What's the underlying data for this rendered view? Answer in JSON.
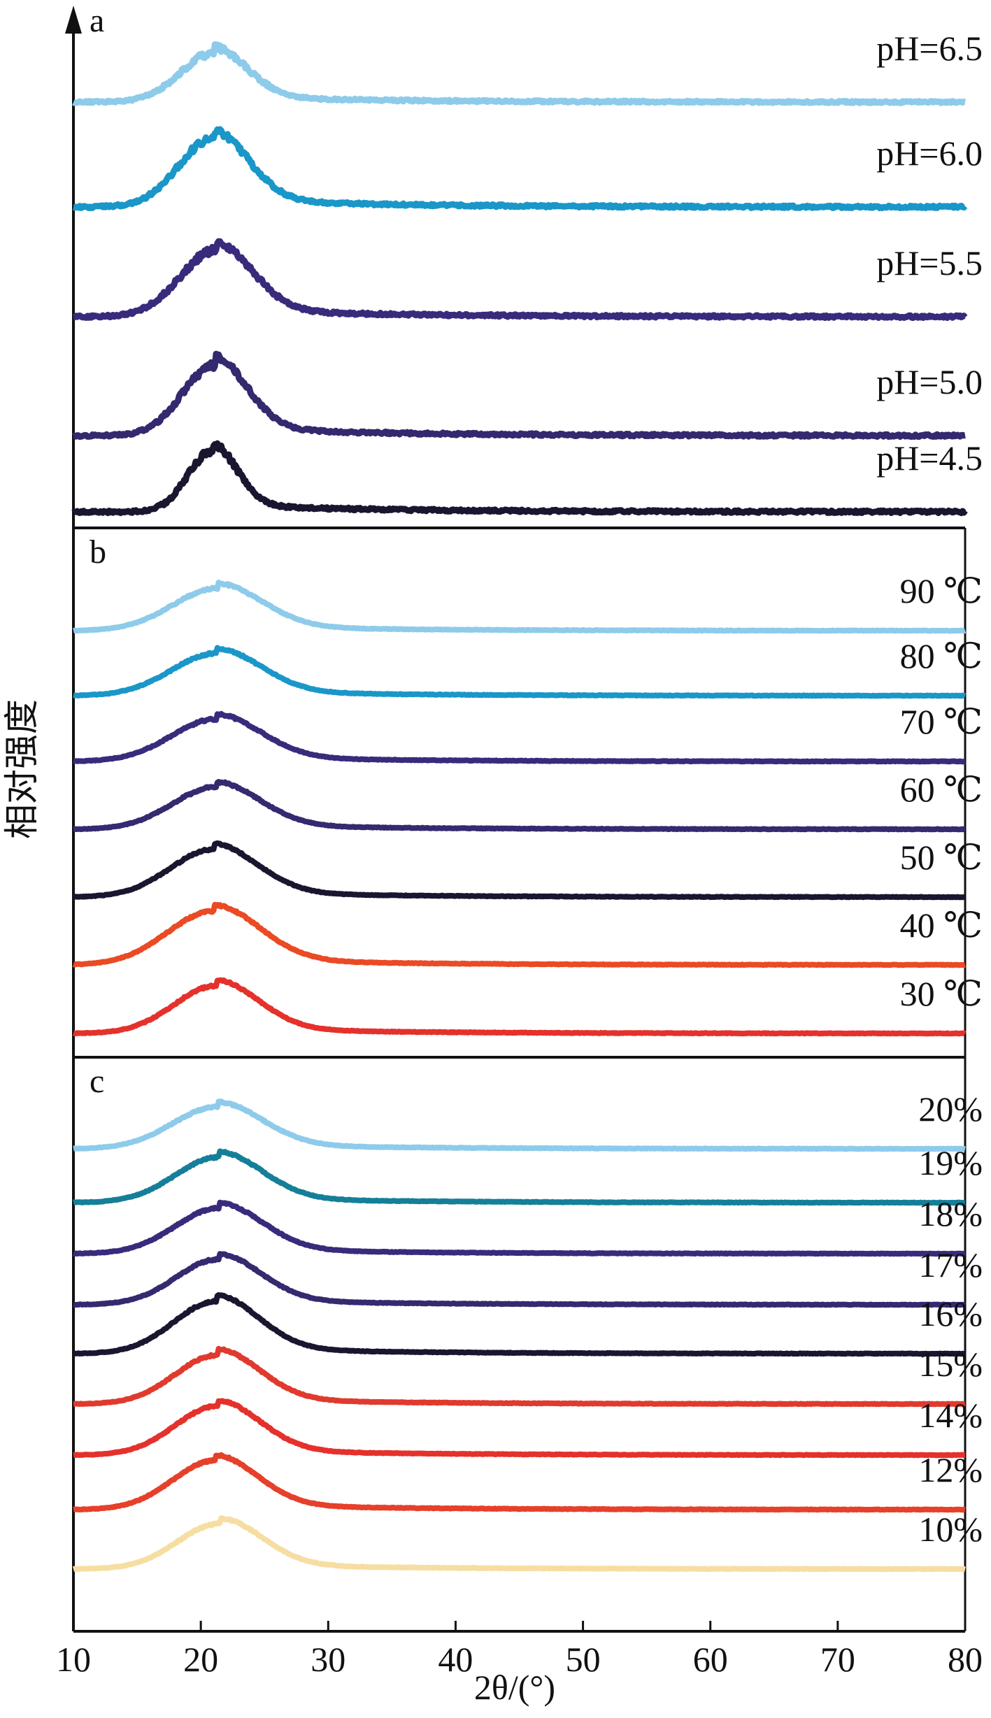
{
  "y_axis_label": "相对强度",
  "x_axis_label": "2θ/(°)",
  "chart_data": {
    "type": "line",
    "xlim": [
      10,
      80
    ],
    "x_ticks": [
      "10",
      "20",
      "30",
      "40",
      "50",
      "60",
      "70",
      "80"
    ],
    "xlabel": "2θ/(°)",
    "ylabel": "相对强度",
    "shared_x_axis": true,
    "panels": [
      {
        "panel": "a",
        "peak_2theta": 21,
        "series": [
          {
            "name": "pH=6.5",
            "color": "#8ecbea",
            "peak": 21,
            "height": 0.5,
            "width": 2.6,
            "noise": 0.05
          },
          {
            "name": "pH=6.0",
            "color": "#1a97c8",
            "peak": 21,
            "height": 0.7,
            "width": 2.7,
            "noise": 0.06
          },
          {
            "name": "pH=5.5",
            "color": "#3a2a7c",
            "peak": 21.2,
            "height": 0.68,
            "width": 2.8,
            "noise": 0.06
          },
          {
            "name": "pH=5.0",
            "color": "#33296e",
            "peak": 21.1,
            "height": 0.72,
            "width": 2.5,
            "noise": 0.06
          },
          {
            "name": "pH=4.5",
            "color": "#1b1530",
            "peak": 20.9,
            "height": 0.62,
            "width": 1.9,
            "noise": 0.06
          }
        ]
      },
      {
        "panel": "b",
        "peak_2theta": 21,
        "series": [
          {
            "name": "90 ℃",
            "color": "#8ecbea",
            "peak": 21.3,
            "height": 0.55,
            "width": 3.5,
            "noise": 0.02
          },
          {
            "name": "80 ℃",
            "color": "#1a97c8",
            "peak": 21.2,
            "height": 0.55,
            "width": 3.5,
            "noise": 0.02
          },
          {
            "name": "70 ℃",
            "color": "#3a2a7c",
            "peak": 21.2,
            "height": 0.55,
            "width": 3.5,
            "noise": 0.02
          },
          {
            "name": "60 ℃",
            "color": "#35296f",
            "peak": 21.2,
            "height": 0.55,
            "width": 3.4,
            "noise": 0.02
          },
          {
            "name": "50 ℃",
            "color": "#1b1530",
            "peak": 21.0,
            "height": 0.62,
            "width": 3.4,
            "noise": 0.02
          },
          {
            "name": "40 ℃",
            "color": "#ea4a24",
            "peak": 21.0,
            "height": 0.7,
            "width": 3.6,
            "noise": 0.02
          },
          {
            "name": "30 ℃",
            "color": "#e5312c",
            "peak": 21.2,
            "height": 0.62,
            "width": 3.3,
            "noise": 0.02
          }
        ]
      },
      {
        "panel": "c",
        "peak_2theta": 21,
        "series": [
          {
            "name": "20%",
            "color": "#8ecbea",
            "peak": 21.3,
            "height": 0.6,
            "width": 3.5,
            "noise": 0.02
          },
          {
            "name": "19%",
            "color": "#157f99",
            "peak": 21.4,
            "height": 0.65,
            "width": 3.4,
            "noise": 0.02
          },
          {
            "name": "18%",
            "color": "#3a2a7c",
            "peak": 21.4,
            "height": 0.65,
            "width": 3.4,
            "noise": 0.02
          },
          {
            "name": "17%",
            "color": "#35296f",
            "peak": 21.4,
            "height": 0.65,
            "width": 3.3,
            "noise": 0.02
          },
          {
            "name": "16%",
            "color": "#1b1530",
            "peak": 21.2,
            "height": 0.75,
            "width": 3.3,
            "noise": 0.02
          },
          {
            "name": "15%",
            "color": "#e03a2e",
            "peak": 21.3,
            "height": 0.7,
            "width": 3.3,
            "noise": 0.02
          },
          {
            "name": "14%",
            "color": "#e5312c",
            "peak": 21.3,
            "height": 0.7,
            "width": 3.3,
            "noise": 0.02
          },
          {
            "name": "12%",
            "color": "#e6402a",
            "peak": 21.1,
            "height": 0.7,
            "width": 3.3,
            "noise": 0.02
          },
          {
            "name": "10%",
            "color": "#f6dea2",
            "peak": 21.5,
            "height": 0.65,
            "width": 3.3,
            "noise": 0.02
          }
        ]
      }
    ]
  }
}
